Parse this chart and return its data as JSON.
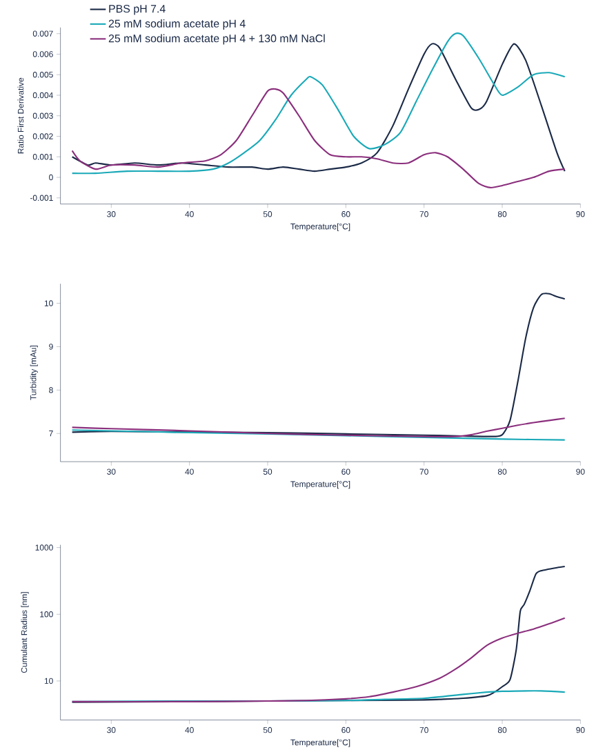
{
  "chart_data": [
    {
      "type": "line",
      "xlabel": "Temperature[°C]",
      "ylabel": "Ratio First Derivative",
      "xlim": [
        23.5,
        90
      ],
      "ylim": [
        -0.0013,
        0.0073
      ],
      "xticks": [
        30,
        40,
        50,
        60,
        70,
        80,
        90
      ],
      "yticks": [
        -0.001,
        0,
        0.001,
        0.002,
        0.003,
        0.004,
        0.005,
        0.006,
        0.007
      ],
      "legend": "top left",
      "series": [
        {
          "name": "PBS pH 7.4",
          "color": "#1b2a47",
          "x": [
            25,
            27,
            28,
            30,
            33,
            36,
            39,
            42,
            45,
            48,
            50,
            52,
            54,
            56,
            58,
            60,
            62,
            64,
            66,
            68,
            70,
            71,
            72,
            74,
            76,
            77,
            78,
            80,
            81.5,
            83,
            85,
            87,
            88
          ],
          "values": [
            0.001,
            0.0006,
            0.0007,
            0.0006,
            0.0007,
            0.0006,
            0.0007,
            0.0006,
            0.0005,
            0.0005,
            0.0004,
            0.0005,
            0.0004,
            0.0003,
            0.0004,
            0.0005,
            0.0007,
            0.0012,
            0.0025,
            0.0043,
            0.006,
            0.0065,
            0.0063,
            0.0048,
            0.0034,
            0.0033,
            0.0037,
            0.0055,
            0.0065,
            0.0057,
            0.0035,
            0.0012,
            0.0003
          ]
        },
        {
          "name": "25 mM sodium acetate pH 4",
          "color": "#1aa9b8",
          "x": [
            25,
            28,
            32,
            36,
            40,
            43,
            45,
            47,
            49,
            51,
            53,
            55,
            55.5,
            57,
            59,
            61,
            63,
            65,
            67,
            69,
            71,
            73,
            74,
            75,
            77,
            79,
            80,
            82,
            84,
            86,
            88
          ],
          "values": [
            0.0002,
            0.0002,
            0.0003,
            0.0003,
            0.0003,
            0.0004,
            0.0007,
            0.0012,
            0.0018,
            0.0028,
            0.004,
            0.0048,
            0.0049,
            0.0045,
            0.0033,
            0.002,
            0.0014,
            0.0016,
            0.0022,
            0.0037,
            0.0052,
            0.0066,
            0.007,
            0.0069,
            0.0058,
            0.0045,
            0.004,
            0.0044,
            0.005,
            0.0051,
            0.0049
          ]
        },
        {
          "name": "25 mM sodium acetate pH 4 + 130 mM NaCl",
          "color": "#8b2f7d",
          "x": [
            25,
            26,
            28,
            30,
            33,
            36,
            39,
            42,
            44,
            46,
            48,
            50,
            51,
            52,
            54,
            56,
            58,
            60,
            62,
            64,
            66,
            68,
            70,
            71.5,
            73,
            75,
            77,
            78.5,
            80,
            82,
            84,
            86,
            88
          ],
          "values": [
            0.0013,
            0.0008,
            0.0004,
            0.0006,
            0.0006,
            0.0005,
            0.0007,
            0.0008,
            0.0011,
            0.0018,
            0.003,
            0.0042,
            0.0043,
            0.0041,
            0.003,
            0.0018,
            0.0011,
            0.001,
            0.001,
            0.0009,
            0.0007,
            0.0007,
            0.0011,
            0.0012,
            0.001,
            0.0004,
            -0.0003,
            -0.0005,
            -0.0004,
            -0.0002,
            0,
            0.0003,
            0.0004
          ]
        }
      ]
    },
    {
      "type": "line",
      "xlabel": "Temperature[°C]",
      "ylabel": "Turbidity [mAu]",
      "xlim": [
        23.5,
        90
      ],
      "ylim": [
        6.35,
        10.45
      ],
      "xticks": [
        30,
        40,
        50,
        60,
        70,
        80,
        90
      ],
      "yticks": [
        7,
        8,
        9,
        10
      ],
      "series": [
        {
          "color": "#1b2a47",
          "x": [
            25,
            30,
            40,
            50,
            60,
            70,
            75,
            79,
            80,
            81,
            82,
            83,
            84,
            85,
            86,
            87,
            88
          ],
          "values": [
            7.03,
            7.05,
            7.03,
            7.02,
            6.99,
            6.96,
            6.94,
            6.93,
            6.97,
            7.3,
            8.2,
            9.2,
            9.9,
            10.2,
            10.22,
            10.15,
            10.1
          ]
        },
        {
          "color": "#1aa9b8",
          "x": [
            25,
            30,
            40,
            50,
            60,
            70,
            80,
            88
          ],
          "values": [
            7.08,
            7.06,
            7.02,
            6.99,
            6.95,
            6.91,
            6.87,
            6.85
          ]
        },
        {
          "color": "#8b2f7d",
          "x": [
            25,
            30,
            40,
            50,
            60,
            70,
            74,
            76,
            78,
            80,
            82,
            84,
            86,
            88
          ],
          "values": [
            7.14,
            7.11,
            7.06,
            7.0,
            6.96,
            6.93,
            6.93,
            6.97,
            7.05,
            7.12,
            7.19,
            7.25,
            7.3,
            7.35
          ]
        }
      ]
    },
    {
      "type": "line",
      "xlabel": "Temperature[°C]",
      "ylabel": "Cumulant Radius [nm]",
      "xlim": [
        23.5,
        90
      ],
      "ylim": [
        2.6,
        1100
      ],
      "log": "y",
      "xticks": [
        30,
        40,
        50,
        60,
        70,
        80,
        90
      ],
      "yticks": [
        10,
        100,
        1000
      ],
      "series": [
        {
          "color": "#1b2a47",
          "x": [
            25,
            50,
            60,
            70,
            72,
            75,
            78,
            79,
            80,
            81,
            81.8,
            82.3,
            82.8,
            83.5,
            84.3,
            85,
            87,
            88
          ],
          "values": [
            4.8,
            5.0,
            5.1,
            5.2,
            5.3,
            5.5,
            6.0,
            6.8,
            8.2,
            10.5,
            30,
            110,
            140,
            220,
            400,
            450,
            500,
            520
          ]
        },
        {
          "color": "#1aa9b8",
          "x": [
            25,
            40,
            50,
            60,
            65,
            70,
            75,
            78,
            80,
            85,
            88
          ],
          "values": [
            4.9,
            5.0,
            5.0,
            5.1,
            5.3,
            5.5,
            6.3,
            6.8,
            7.0,
            7.1,
            6.8
          ]
        },
        {
          "color": "#8b2f7d",
          "x": [
            25,
            40,
            50,
            55,
            60,
            63,
            66,
            69,
            72,
            74,
            76,
            78,
            80,
            82,
            84,
            86,
            88
          ],
          "values": [
            4.9,
            4.9,
            5.0,
            5.1,
            5.4,
            5.8,
            6.8,
            8.2,
            11,
            15,
            22,
            34,
            44,
            52,
            60,
            72,
            88
          ]
        }
      ]
    }
  ]
}
